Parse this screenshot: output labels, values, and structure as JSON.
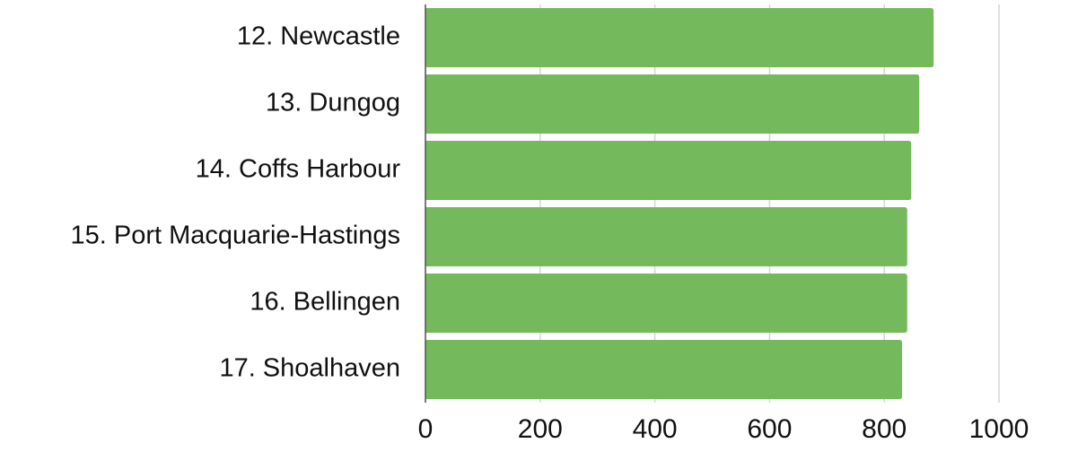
{
  "chart_data": {
    "type": "barh",
    "categories": [
      "12. Newcastle",
      "13. Dungog",
      "14. Coffs Harbour",
      "15. Port Macquarie-Hastings",
      "16. Bellingen",
      "17. Shoalhaven"
    ],
    "values": [
      886,
      861,
      847,
      840,
      840,
      831
    ],
    "color": "#74b95b",
    "xlim": [
      0,
      1000
    ],
    "xticks": [
      0,
      200,
      400,
      600,
      800,
      1000
    ],
    "grid": true
  }
}
